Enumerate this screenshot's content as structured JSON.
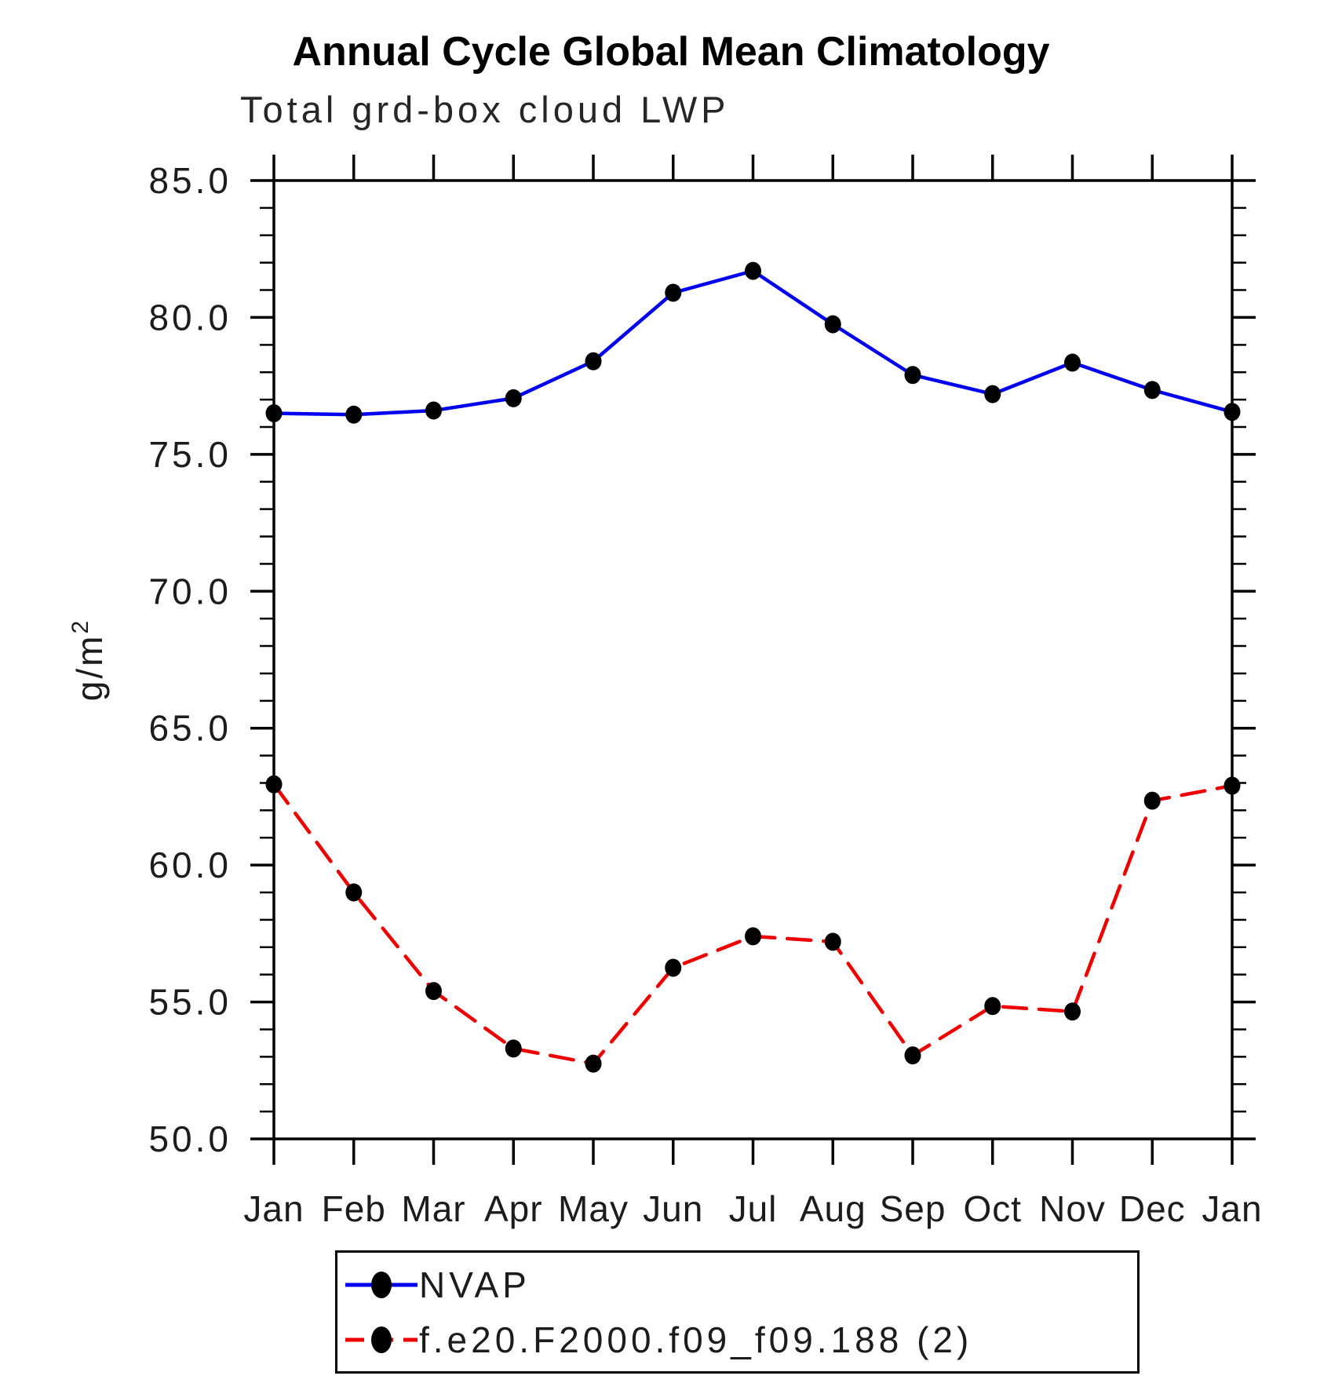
{
  "chart_data": {
    "type": "line",
    "title": "Annual Cycle Global Mean Climatology",
    "subtitle": "Total grd-box cloud LWP",
    "ylabel": "g/m²",
    "ylabel_base": "g/m",
    "ylabel_exponent": "2",
    "categories": [
      "Jan",
      "Feb",
      "Mar",
      "Apr",
      "May",
      "Jun",
      "Jul",
      "Aug",
      "Sep",
      "Oct",
      "Nov",
      "Dec",
      "Jan"
    ],
    "ylim": [
      50.0,
      85.0
    ],
    "ytick_major_step": 5,
    "ytick_minor_step": 1,
    "ytick_labels": [
      "50.0",
      "55.0",
      "60.0",
      "65.0",
      "70.0",
      "75.0",
      "80.0",
      "85.0"
    ],
    "grid": false,
    "legend_position": "bottom-center",
    "frame_color": "#000000",
    "series": [
      {
        "name": "NVAP",
        "color": "#0000EE",
        "line_style": "solid",
        "marker": "filled-circle",
        "marker_color": "#000000",
        "values": [
          76.5,
          76.45,
          76.6,
          77.05,
          78.4,
          80.9,
          81.7,
          79.75,
          77.9,
          77.2,
          78.35,
          77.35,
          76.55
        ]
      },
      {
        "name": "f.e20.F2000.f09_f09.188 (2)",
        "color": "#EE0000",
        "line_style": "dashed",
        "marker": "filled-circle",
        "marker_color": "#000000",
        "values": [
          62.95,
          59.0,
          55.4,
          53.3,
          52.75,
          56.25,
          57.4,
          57.2,
          53.05,
          54.85,
          54.65,
          62.35,
          62.9
        ]
      }
    ]
  }
}
